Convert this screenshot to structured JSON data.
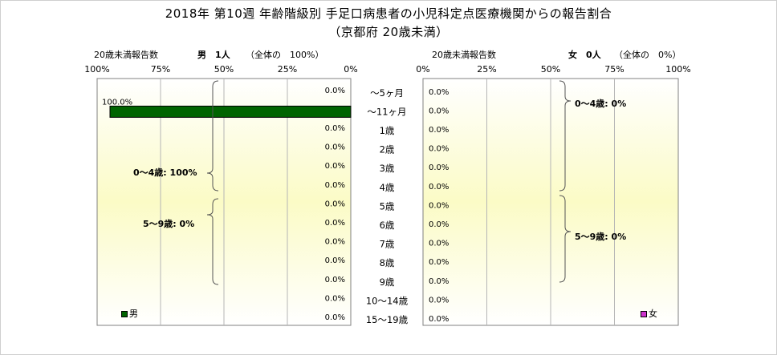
{
  "title": "2018年 第10週 年齢階級別 手足口病患者の小児科定点医療機関からの報告割合",
  "subtitle": "（京都府 20歳未満）",
  "male_panel": {
    "caption": "20歳未満報告数",
    "count_label": "男　1人",
    "share_label": "（全体の　100%）",
    "legend": "男",
    "group_labels": [
      "0～4歳: 100%",
      "5～9歳: 0%"
    ],
    "axis_ticks": [
      "100%",
      "75%",
      "50%",
      "25%",
      "0%"
    ],
    "color": "#006400"
  },
  "female_panel": {
    "caption": "20歳未満報告数",
    "count_label": "女　0人",
    "share_label": "（全体の　0%）",
    "legend": "女",
    "group_labels": [
      "0～4歳: 0%",
      "5～9歳: 0%"
    ],
    "axis_ticks": [
      "0%",
      "25%",
      "50%",
      "75%",
      "100%"
    ],
    "color": "#cc33cc"
  },
  "chart_data": {
    "type": "bar",
    "orientation": "horizontal",
    "categories": [
      "～5ヶ月",
      "～11ヶ月",
      "1歳",
      "2歳",
      "3歳",
      "4歳",
      "5歳",
      "6歳",
      "7歳",
      "8歳",
      "9歳",
      "10～14歳",
      "15～19歳"
    ],
    "series": [
      {
        "name": "男",
        "values": [
          0,
          100,
          0,
          0,
          0,
          0,
          0,
          0,
          0,
          0,
          0,
          0,
          0
        ],
        "labels": [
          "0.0%",
          "100.0%",
          "0.0%",
          "0.0%",
          "0.0%",
          "0.0%",
          "0.0%",
          "0.0%",
          "0.0%",
          "0.0%",
          "0.0%",
          "0.0%",
          "0.0%"
        ]
      },
      {
        "name": "女",
        "values": [
          0,
          0,
          0,
          0,
          0,
          0,
          0,
          0,
          0,
          0,
          0,
          0,
          0
        ],
        "labels": [
          "0.0%",
          "0.0%",
          "0.0%",
          "0.0%",
          "0.0%",
          "0.0%",
          "0.0%",
          "0.0%",
          "0.0%",
          "0.0%",
          "0.0%",
          "0.0%",
          "0.0%"
        ]
      }
    ],
    "xlim": [
      0,
      100
    ],
    "grid": true
  }
}
